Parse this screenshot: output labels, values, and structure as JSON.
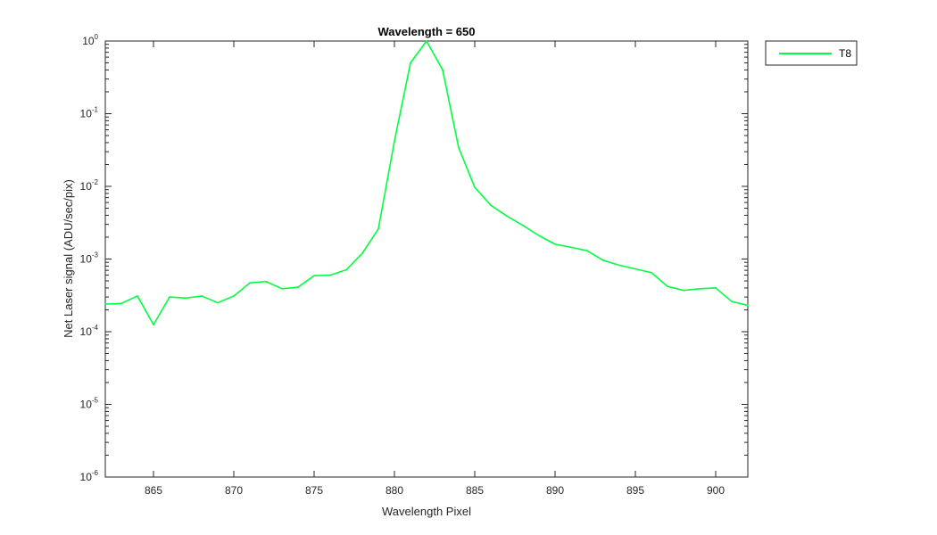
{
  "chart_data": {
    "type": "line",
    "title": "Wavelength = 650",
    "xlabel": "Wavelength Pixel",
    "ylabel": "Net Laser signal  (ADU/sec/pix)",
    "xlim": [
      862,
      902
    ],
    "ylim": [
      1e-06,
      1
    ],
    "y_scale": "log",
    "x_ticks": [
      865,
      870,
      875,
      880,
      885,
      890,
      895,
      900
    ],
    "y_ticks": [
      {
        "value": 1e-06,
        "base": "10",
        "exp": "-6"
      },
      {
        "value": 1e-05,
        "base": "10",
        "exp": "-5"
      },
      {
        "value": 0.0001,
        "base": "10",
        "exp": "-4"
      },
      {
        "value": 0.001,
        "base": "10",
        "exp": "-3"
      },
      {
        "value": 0.01,
        "base": "10",
        "exp": "-2"
      },
      {
        "value": 0.1,
        "base": "10",
        "exp": "-1"
      },
      {
        "value": 1,
        "base": "10",
        "exp": "0"
      }
    ],
    "grid": false,
    "legend_position": "outside-top-right",
    "series": [
      {
        "name": "T8",
        "color": "#00ff40",
        "x": [
          862,
          863,
          864,
          865,
          866,
          867,
          868,
          869,
          870,
          871,
          872,
          873,
          874,
          875,
          876,
          877,
          878,
          879,
          880,
          881,
          882,
          883,
          884,
          885,
          886,
          887,
          888,
          889,
          890,
          891,
          892,
          893,
          894,
          895,
          896,
          897,
          898,
          899,
          900,
          901,
          902
        ],
        "y": [
          0.00024,
          0.000245,
          0.00031,
          0.000125,
          0.0003,
          0.00029,
          0.00031,
          0.00025,
          0.00031,
          0.00047,
          0.00049,
          0.00039,
          0.00041,
          0.00059,
          0.0006,
          0.00071,
          0.0012,
          0.0026,
          0.042,
          0.5,
          1.0,
          0.4,
          0.034,
          0.0097,
          0.0055,
          0.0039,
          0.0029,
          0.0021,
          0.0016,
          0.00145,
          0.0013,
          0.00096,
          0.00082,
          0.00073,
          0.00065,
          0.00042,
          0.00037,
          0.00039,
          0.0004,
          0.00026,
          0.00023
        ]
      }
    ]
  }
}
